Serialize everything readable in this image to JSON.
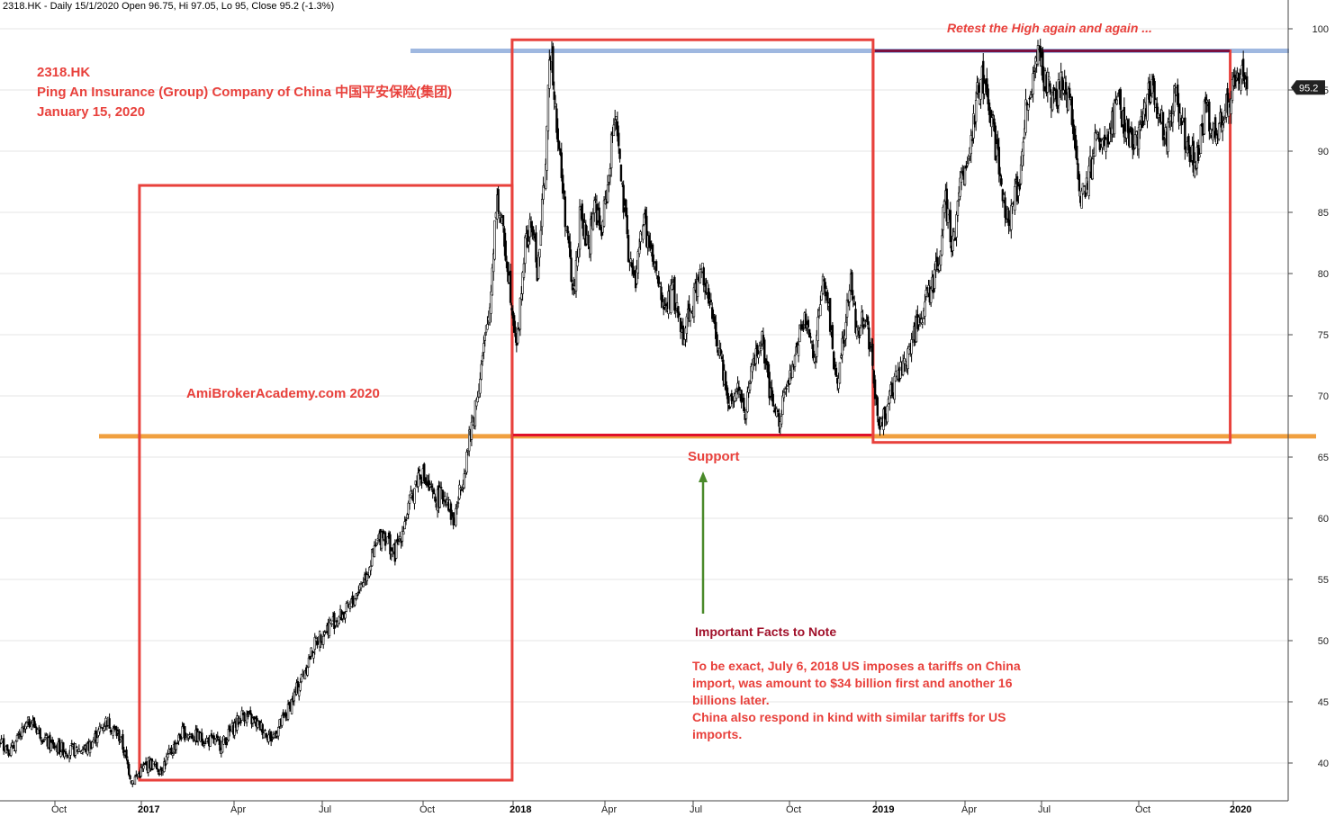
{
  "header": {
    "info": "2318.HK - Daily 15/1/2020 Open 96.75, Hi 97.05, Lo 95, Close 95.2 (-1.3%)"
  },
  "annotations": {
    "ticker": "2318.HK",
    "company": "Ping An Insurance (Group) Company of China  中国平安保险(集团)",
    "date": "January 15, 2020",
    "watermark": "AmiBrokerAcademy.com   2020",
    "retest": "Retest the High again and again ...",
    "support": "Support",
    "facts_heading": "Important Facts to Note",
    "facts_lines": [
      "To be exact, July 6, 2018 US imposes a tariffs on China",
      "import, was amount to $34 billion first and another 16",
      "billions later.",
      "China also respond in kind with similar tariffs for US",
      "imports."
    ]
  },
  "colors": {
    "box": "#e8413c",
    "support_line": "#f0a040",
    "resistance_line": "#9fb8e0",
    "support_segment": "#e0102a",
    "resistance_segment": "#7a1040",
    "arrow": "#4a8a2a",
    "price": "#000000",
    "last_price_bg": "#222222"
  },
  "chart_data": {
    "type": "candlestick",
    "symbol": "2318.HK",
    "interval": "Daily",
    "ylim": [
      37,
      101
    ],
    "y_ticks": [
      40,
      45,
      50,
      55,
      60,
      65,
      70,
      75,
      80,
      85,
      90,
      95,
      100
    ],
    "x_ticks": [
      {
        "label": "Oct",
        "date": "2016-10-01",
        "bold": false
      },
      {
        "label": "2017",
        "date": "2017-01-01",
        "bold": true
      },
      {
        "label": "Apr",
        "date": "2017-04-01",
        "bold": false
      },
      {
        "label": "Jul",
        "date": "2017-07-01",
        "bold": false
      },
      {
        "label": "Oct",
        "date": "2017-10-01",
        "bold": false
      },
      {
        "label": "2018",
        "date": "2018-01-01",
        "bold": true
      },
      {
        "label": "Apr",
        "date": "2018-04-01",
        "bold": false
      },
      {
        "label": "Jul",
        "date": "2018-07-01",
        "bold": false
      },
      {
        "label": "Oct",
        "date": "2018-10-01",
        "bold": false
      },
      {
        "label": "2019",
        "date": "2019-01-01",
        "bold": true
      },
      {
        "label": "Apr",
        "date": "2019-04-01",
        "bold": false
      },
      {
        "label": "Jul",
        "date": "2019-07-01",
        "bold": false
      },
      {
        "label": "Oct",
        "date": "2019-10-01",
        "bold": false
      },
      {
        "label": "2020",
        "date": "2020-01-01",
        "bold": true
      }
    ],
    "last_close": 95.2,
    "price_path": [
      [
        "2016-07-01",
        41
      ],
      [
        "2016-07-25",
        42.5
      ],
      [
        "2016-08-15",
        41
      ],
      [
        "2016-09-05",
        43.5
      ],
      [
        "2016-09-25",
        41.5
      ],
      [
        "2016-10-15",
        41
      ],
      [
        "2016-11-05",
        41.2
      ],
      [
        "2016-11-25",
        43.5
      ],
      [
        "2016-12-10",
        42
      ],
      [
        "2016-12-22",
        38.5
      ],
      [
        "2017-01-08",
        40
      ],
      [
        "2017-01-20",
        39.5
      ],
      [
        "2017-02-10",
        42.5
      ],
      [
        "2017-03-01",
        42
      ],
      [
        "2017-03-20",
        41.5
      ],
      [
        "2017-04-10",
        44
      ],
      [
        "2017-04-28",
        43
      ],
      [
        "2017-05-10",
        42
      ],
      [
        "2017-05-25",
        44
      ],
      [
        "2017-06-10",
        47
      ],
      [
        "2017-06-25",
        50
      ],
      [
        "2017-07-10",
        51.5
      ],
      [
        "2017-07-25",
        52.5
      ],
      [
        "2017-08-10",
        55.5
      ],
      [
        "2017-08-25",
        59
      ],
      [
        "2017-09-05",
        57
      ],
      [
        "2017-09-15",
        60
      ],
      [
        "2017-09-28",
        64
      ],
      [
        "2017-10-12",
        61.5
      ],
      [
        "2017-10-25",
        62
      ],
      [
        "2017-11-01",
        59.5
      ],
      [
        "2017-11-12",
        64
      ],
      [
        "2017-11-25",
        70
      ],
      [
        "2017-12-08",
        77
      ],
      [
        "2017-12-15",
        86.5
      ],
      [
        "2017-12-25",
        81.5
      ],
      [
        "2018-01-05",
        74
      ],
      [
        "2018-01-12",
        82
      ],
      [
        "2018-01-20",
        84
      ],
      [
        "2018-01-25",
        80
      ],
      [
        "2018-02-01",
        88
      ],
      [
        "2018-02-07",
        99
      ],
      [
        "2018-02-14",
        91
      ],
      [
        "2018-02-22",
        84
      ],
      [
        "2018-03-01",
        78
      ],
      [
        "2018-03-08",
        85
      ],
      [
        "2018-03-15",
        82
      ],
      [
        "2018-03-22",
        86
      ],
      [
        "2018-03-28",
        83
      ],
      [
        "2018-04-05",
        88
      ],
      [
        "2018-04-12",
        94
      ],
      [
        "2018-04-18",
        87
      ],
      [
        "2018-04-25",
        82
      ],
      [
        "2018-05-02",
        79
      ],
      [
        "2018-05-10",
        84.5
      ],
      [
        "2018-05-20",
        81
      ],
      [
        "2018-06-01",
        77
      ],
      [
        "2018-06-10",
        78.5
      ],
      [
        "2018-06-20",
        75
      ],
      [
        "2018-07-01",
        78
      ],
      [
        "2018-07-10",
        80.5
      ],
      [
        "2018-07-20",
        76
      ],
      [
        "2018-07-30",
        72
      ],
      [
        "2018-08-05",
        69.5
      ],
      [
        "2018-08-12",
        71
      ],
      [
        "2018-08-20",
        68.5
      ],
      [
        "2018-08-28",
        73
      ],
      [
        "2018-09-05",
        74.5
      ],
      [
        "2018-09-12",
        70
      ],
      [
        "2018-09-20",
        68
      ],
      [
        "2018-09-28",
        70.5
      ],
      [
        "2018-10-05",
        72
      ],
      [
        "2018-10-12",
        75.5
      ],
      [
        "2018-10-20",
        76
      ],
      [
        "2018-10-28",
        73
      ],
      [
        "2018-11-05",
        80
      ],
      [
        "2018-11-12",
        77
      ],
      [
        "2018-11-20",
        71
      ],
      [
        "2018-11-28",
        75
      ],
      [
        "2018-12-05",
        79.5
      ],
      [
        "2018-12-12",
        75
      ],
      [
        "2018-12-20",
        77
      ],
      [
        "2018-12-28",
        73
      ],
      [
        "2019-01-03",
        67.5
      ],
      [
        "2019-01-10",
        68.5
      ],
      [
        "2019-01-20",
        71
      ],
      [
        "2019-02-01",
        73
      ],
      [
        "2019-02-12",
        76
      ],
      [
        "2019-02-22",
        78
      ],
      [
        "2019-03-05",
        80.5
      ],
      [
        "2019-03-12",
        86
      ],
      [
        "2019-03-20",
        82
      ],
      [
        "2019-03-28",
        87.5
      ],
      [
        "2019-04-08",
        91
      ],
      [
        "2019-04-15",
        94.5
      ],
      [
        "2019-04-22",
        96
      ],
      [
        "2019-04-30",
        94
      ],
      [
        "2019-05-08",
        90
      ],
      [
        "2019-05-15",
        87
      ],
      [
        "2019-05-22",
        84.5
      ],
      [
        "2019-05-30",
        86
      ],
      [
        "2019-06-05",
        88
      ],
      [
        "2019-06-12",
        93
      ],
      [
        "2019-06-20",
        95
      ],
      [
        "2019-06-28",
        98
      ],
      [
        "2019-07-05",
        95.5
      ],
      [
        "2019-07-15",
        94
      ],
      [
        "2019-07-22",
        96
      ],
      [
        "2019-07-30",
        93
      ],
      [
        "2019-08-08",
        86
      ],
      [
        "2019-08-15",
        88
      ],
      [
        "2019-08-22",
        91
      ],
      [
        "2019-09-01",
        90
      ],
      [
        "2019-09-10",
        94.5
      ],
      [
        "2019-09-18",
        92
      ],
      [
        "2019-09-25",
        90
      ],
      [
        "2019-10-05",
        93
      ],
      [
        "2019-10-12",
        95
      ],
      [
        "2019-10-20",
        93.5
      ],
      [
        "2019-10-28",
        91
      ],
      [
        "2019-11-05",
        95
      ],
      [
        "2019-11-15",
        91
      ],
      [
        "2019-11-25",
        89
      ],
      [
        "2019-12-05",
        93.5
      ],
      [
        "2019-12-15",
        91
      ],
      [
        "2019-12-25",
        94
      ],
      [
        "2020-01-03",
        95.5
      ],
      [
        "2020-01-10",
        97.5
      ],
      [
        "2020-01-15",
        95.2
      ]
    ],
    "levels": [
      {
        "kind": "support",
        "price": 66.7
      },
      {
        "kind": "resistance",
        "price": 98.2
      }
    ],
    "boxes": [
      {
        "from": "2016-12-30",
        "to": "2017-12-31",
        "low": 38.6,
        "high": 87.2
      },
      {
        "from": "2017-12-31",
        "to": "2018-12-29",
        "low": 66.8,
        "high": 99.1
      },
      {
        "from": "2018-12-29",
        "to": "2019-12-29",
        "low": 66.2,
        "high": 98.2
      }
    ]
  }
}
